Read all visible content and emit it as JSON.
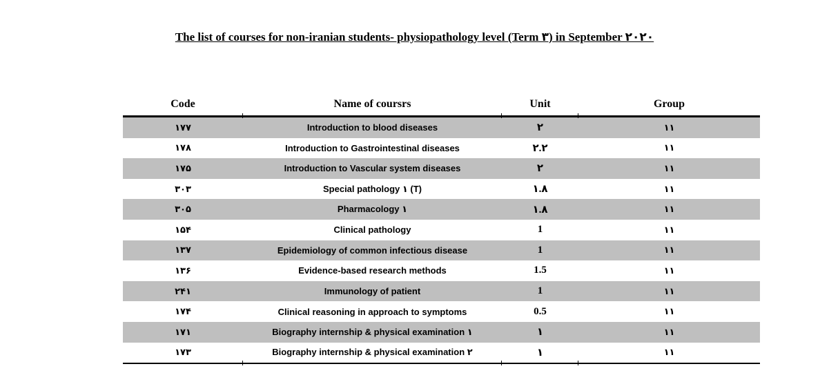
{
  "title": "The list of courses for non-iranian students- physiopathology level (Term ۳) in September ۲۰۲۰",
  "table": {
    "headers": [
      "Code",
      "Name of coursrs",
      "Unit",
      "Group"
    ],
    "rows": [
      {
        "code": "۱۷۷",
        "name": "Introduction to blood diseases",
        "unit": "۲",
        "group": "۱۱"
      },
      {
        "code": "۱۷۸",
        "name": "Introduction to Gastrointestinal diseases",
        "unit": "۲.۲",
        "group": "۱۱"
      },
      {
        "code": "۱۷۵",
        "name": "Introduction to Vascular system diseases",
        "unit": "۲",
        "group": "۱۱"
      },
      {
        "code": "۳۰۳",
        "name": "Special pathology ۱ (T)",
        "unit": "۱.۸",
        "group": "۱۱"
      },
      {
        "code": "۳۰۵",
        "name": "Pharmacology ۱",
        "unit": "۱.۸",
        "group": "۱۱"
      },
      {
        "code": "۱۵۴",
        "name": "Clinical pathology",
        "unit": "1",
        "group": "۱۱"
      },
      {
        "code": "۱۳۷",
        "name": "Epidemiology of common infectious disease",
        "unit": "1",
        "group": "۱۱"
      },
      {
        "code": "۱۳۶",
        "name": "Evidence-based research methods",
        "unit": "1.5",
        "group": "۱۱"
      },
      {
        "code": "۲۴۱",
        "name": "Immunology of patient",
        "unit": "1",
        "group": "۱۱"
      },
      {
        "code": "۱۷۴",
        "name": "Clinical reasoning in approach to symptoms",
        "unit": "0.5",
        "group": "۱۱"
      },
      {
        "code": "۱۷۱",
        "name": "Biography internship & physical examination ۱",
        "unit": "۱",
        "group": "۱۱"
      },
      {
        "code": "۱۷۳",
        "name": "Biography internship & physical examination ۲",
        "unit": "۱",
        "group": "۱۱"
      }
    ]
  },
  "colors": {
    "row_stripe": "#bfbfbf",
    "text": "#000000",
    "background": "#ffffff",
    "rule": "#000000"
  }
}
